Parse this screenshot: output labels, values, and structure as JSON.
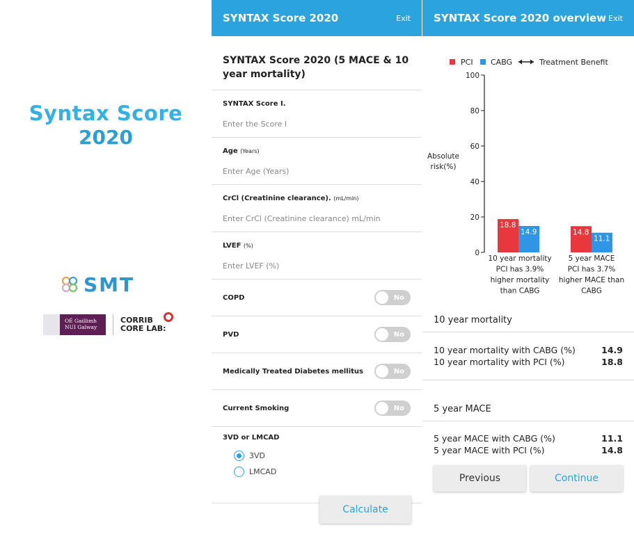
{
  "splash": {
    "logo_line1": "Syntax Score",
    "logo_line2": "2020",
    "smt_label": "SMT",
    "nuig_line1": "OÉ Gaillimh",
    "nuig_line2": "NUI Galway",
    "corrib_line1": "CORRIB",
    "corrib_line2": "CORE LAB:"
  },
  "form": {
    "header_title": "SYNTAX Score 2020",
    "exit_label": "Exit",
    "heading": "SYNTAX Score 2020 (5 MACE & 10 year mortality)",
    "fields": [
      {
        "label": "SYNTAX Score I.",
        "unit": "",
        "placeholder": "Enter the Score I"
      },
      {
        "label": "Age",
        "unit": "(Years)",
        "placeholder": "Enter Age (Years)"
      },
      {
        "label": "CrCl (Creatinine clearance).",
        "unit": "(mL/min)",
        "placeholder": "Enter CrCl (Creatinine clearance)  mL/min"
      },
      {
        "label": "LVEF",
        "unit": "(%)",
        "placeholder": "Enter LVEF (%)"
      }
    ],
    "toggles": [
      {
        "label": "COPD",
        "value": "No"
      },
      {
        "label": "PVD",
        "value": "No"
      },
      {
        "label": "Medically Treated Diabetes mellitus",
        "value": "No"
      },
      {
        "label": "Current Smoking",
        "value": "No"
      }
    ],
    "radio_group_label": "3VD or LMCAD",
    "radio_options": [
      "3VD",
      "LMCAD"
    ],
    "radio_selected": "3VD",
    "calculate_label": "Calculate"
  },
  "overview": {
    "header_title": "SYNTAX Score 2020 overview",
    "exit_label": "Exit",
    "mortality_title": "10 year mortality",
    "mortality_rows": [
      {
        "label": "10 year mortality with CABG (%)",
        "value": "14.9"
      },
      {
        "label": "10 year mortality with PCI (%)",
        "value": "18.8"
      }
    ],
    "mace_title": "5 year MACE",
    "mace_rows": [
      {
        "label": "5 year MACE with CABG (%)",
        "value": "11.1"
      },
      {
        "label": "5 year MACE with PCI (%)",
        "value": "14.8"
      }
    ],
    "previous_label": "Previous",
    "continue_label": "Continue"
  },
  "colors": {
    "accent": "#2ba4de",
    "pci": "#e8383d",
    "cabg": "#2f96e6"
  },
  "chart_data": {
    "type": "bar",
    "legend": {
      "pci": "PCI",
      "cabg": "CABG",
      "benefit": "Treatment Benefit"
    },
    "ylabel_line1": "Absolute",
    "ylabel_line2": "risk(%)",
    "ylim": [
      0,
      100
    ],
    "yticks": [
      0,
      20,
      40,
      60,
      80,
      100
    ],
    "categories": [
      {
        "lines": [
          "10 year mortality",
          "PCI has 3.9%",
          "higher mortality",
          "than CABG"
        ]
      },
      {
        "lines": [
          "5 year MACE",
          "PCI has 3.7%",
          "higher MACE than",
          "CABG"
        ]
      }
    ],
    "series": [
      {
        "name": "PCI",
        "values": [
          18.8,
          14.8
        ]
      },
      {
        "name": "CABG",
        "values": [
          14.9,
          11.1
        ]
      }
    ]
  }
}
